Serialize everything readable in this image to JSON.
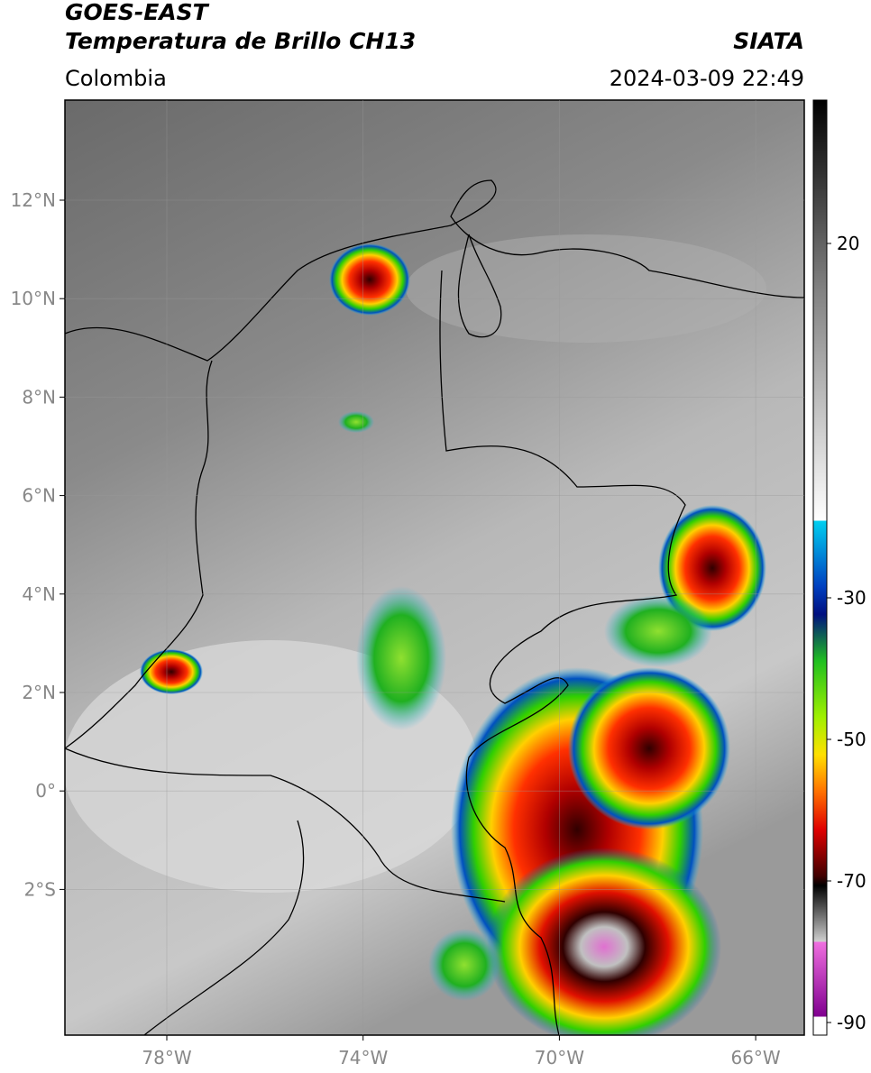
{
  "header": {
    "title": "GOES-EAST",
    "subtitle": "Temperatura de Brillo CH13",
    "region": "Colombia",
    "source": "SIATA",
    "datetime": "2024-03-09 22:49"
  },
  "map": {
    "lat_labels": [
      "12°N",
      "10°N",
      "8°N",
      "6°N",
      "4°N",
      "2°N",
      "0°",
      "2°S"
    ],
    "lon_labels": [
      "78°W",
      "74°W",
      "70°W",
      "66°W"
    ]
  },
  "colorbar": {
    "labels": [
      "20",
      "-30",
      "-50",
      "-70",
      "-90"
    ]
  }
}
